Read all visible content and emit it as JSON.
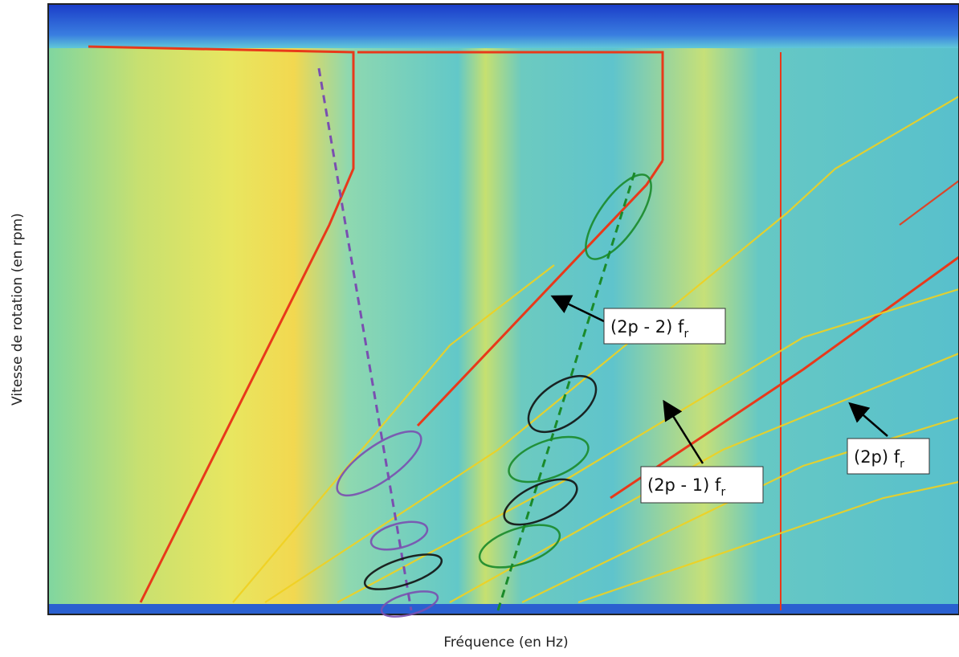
{
  "figure": {
    "x_label": "Fréquence (en Hz)",
    "y_label": "Vitesse de rotation (en rpm)",
    "annotations": [
      {
        "main": "(2p - 2) f",
        "sub": "r"
      },
      {
        "main": "(2p - 1) f",
        "sub": "r"
      },
      {
        "main": "(2p) f",
        "sub": "r"
      }
    ]
  }
}
